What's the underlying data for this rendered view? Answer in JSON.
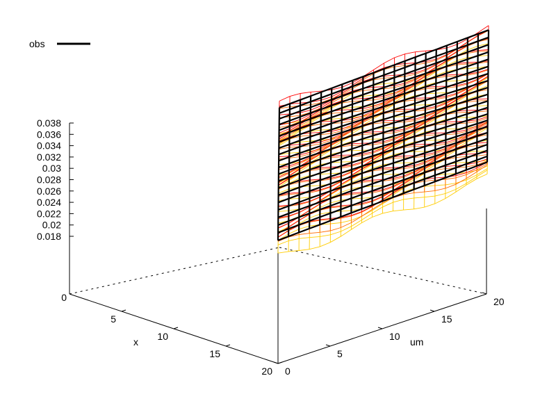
{
  "chart_data": {
    "type": "surface",
    "title": "",
    "xlabel": "x",
    "ylabel": "um",
    "zlabel": "",
    "x_range": [
      0,
      20
    ],
    "y_range": [
      0,
      20
    ],
    "z_range": [
      0.018,
      0.038
    ],
    "x_ticks": [
      "5",
      "10",
      "15",
      "20"
    ],
    "y_ticks": [
      "0",
      "5",
      "10",
      "15",
      "20"
    ],
    "z_ticks": [
      "0.038",
      "0.036",
      "0.034",
      "0.032",
      "0.03",
      "0.028",
      "0.026",
      "0.024",
      "0.022",
      "0.02",
      "0.018"
    ],
    "base_label": "0",
    "legend": {
      "position": "top-left",
      "entries": [
        {
          "name": "obs",
          "color": "#000000"
        }
      ]
    },
    "series": [
      {
        "name": "obs",
        "color": "#000000",
        "corner_values": {
          "x0_um0": 0.0325,
          "x20_um0": 0.0295,
          "x0_um20": 0.0343,
          "x20_um20": 0.0315
        }
      },
      {
        "name": "",
        "color": "#ff0000",
        "offset": 0.0004
      },
      {
        "name": "",
        "color": "#ff6a00",
        "offset": -0.001
      },
      {
        "name": "",
        "color": "#ffcc00",
        "offset": -0.003
      }
    ]
  }
}
